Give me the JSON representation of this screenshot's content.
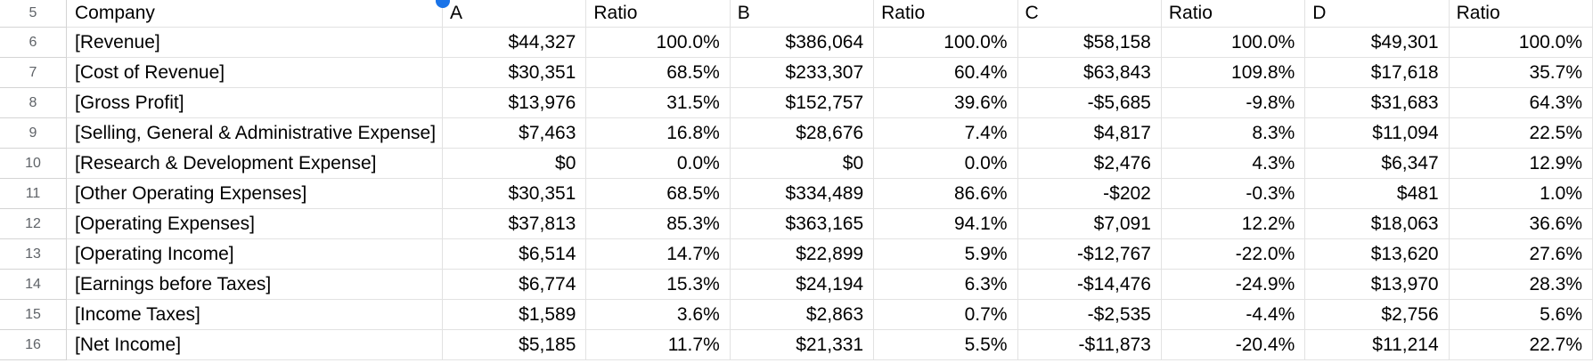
{
  "sheet": {
    "presence_dot_color": "#1a73e8",
    "grid_line_color": "#e2e2e2",
    "row_header_line_color": "#d4d4d4",
    "header_row_number": "5",
    "columns": [
      "Company",
      "A",
      "Ratio",
      "B",
      "Ratio",
      "C",
      "Ratio",
      "D",
      "Ratio"
    ],
    "rows": [
      {
        "num": "6",
        "label": "[Revenue]",
        "values": [
          "$44,327",
          "100.0%",
          "$386,064",
          "100.0%",
          "$58,158",
          "100.0%",
          "$49,301",
          "100.0%"
        ]
      },
      {
        "num": "7",
        "label": "[Cost of Revenue]",
        "values": [
          "$30,351",
          "68.5%",
          "$233,307",
          "60.4%",
          "$63,843",
          "109.8%",
          "$17,618",
          "35.7%"
        ]
      },
      {
        "num": "8",
        "label": "[Gross Profit]",
        "values": [
          "$13,976",
          "31.5%",
          "$152,757",
          "39.6%",
          "-$5,685",
          "-9.8%",
          "$31,683",
          "64.3%"
        ]
      },
      {
        "num": "9",
        "label": "[Selling, General & Administrative Expense]",
        "values": [
          "$7,463",
          "16.8%",
          "$28,676",
          "7.4%",
          "$4,817",
          "8.3%",
          "$11,094",
          "22.5%"
        ]
      },
      {
        "num": "10",
        "label": "[Research & Development Expense]",
        "values": [
          "$0",
          "0.0%",
          "$0",
          "0.0%",
          "$2,476",
          "4.3%",
          "$6,347",
          "12.9%"
        ]
      },
      {
        "num": "11",
        "label": "[Other Operating Expenses]",
        "values": [
          "$30,351",
          "68.5%",
          "$334,489",
          "86.6%",
          "-$202",
          "-0.3%",
          "$481",
          "1.0%"
        ]
      },
      {
        "num": "12",
        "label": "[Operating Expenses]",
        "values": [
          "$37,813",
          "85.3%",
          "$363,165",
          "94.1%",
          "$7,091",
          "12.2%",
          "$18,063",
          "36.6%"
        ]
      },
      {
        "num": "13",
        "label": "[Operating Income]",
        "values": [
          "$6,514",
          "14.7%",
          "$22,899",
          "5.9%",
          "-$12,767",
          "-22.0%",
          "$13,620",
          "27.6%"
        ]
      },
      {
        "num": "14",
        "label": "[Earnings before Taxes]",
        "values": [
          "$6,774",
          "15.3%",
          "$24,194",
          "6.3%",
          "-$14,476",
          "-24.9%",
          "$13,970",
          "28.3%"
        ]
      },
      {
        "num": "15",
        "label": "[Income Taxes]",
        "values": [
          "$1,589",
          "3.6%",
          "$2,863",
          "0.7%",
          "-$2,535",
          "-4.4%",
          "$2,756",
          "5.6%"
        ]
      },
      {
        "num": "16",
        "label": "[Net Income]",
        "values": [
          "$5,185",
          "11.7%",
          "$21,331",
          "5.5%",
          "-$11,873",
          "-20.4%",
          "$11,214",
          "22.7%"
        ]
      }
    ]
  }
}
